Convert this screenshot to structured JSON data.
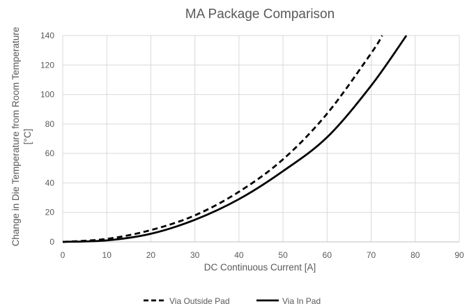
{
  "chart_data": {
    "type": "line",
    "title": "MA Package Comparison",
    "xlabel": "DC Continuous Current [A]",
    "ylabel_lines": [
      "Change in Die Temperature from Room Temperature",
      "[°C]"
    ],
    "xlim": [
      0,
      90
    ],
    "ylim": [
      0,
      140
    ],
    "x_ticks": [
      0,
      10,
      20,
      30,
      40,
      50,
      60,
      70,
      80,
      90
    ],
    "y_ticks": [
      0,
      20,
      40,
      60,
      80,
      100,
      120,
      140
    ],
    "grid": true,
    "legend_position": "bottom",
    "series": [
      {
        "name": "Via Outside Pad",
        "style": "dashed",
        "color": "#000000",
        "x": [
          0,
          10,
          20,
          30,
          40,
          50,
          60,
          70,
          72.5
        ],
        "y": [
          0,
          2,
          8,
          18,
          34,
          56,
          87,
          128,
          140
        ]
      },
      {
        "name": "Via In Pad",
        "style": "solid",
        "color": "#000000",
        "x": [
          0,
          10,
          20,
          30,
          40,
          50,
          60,
          70,
          78
        ],
        "y": [
          0,
          1,
          5.5,
          15,
          29,
          48,
          71,
          106,
          140
        ]
      }
    ]
  }
}
